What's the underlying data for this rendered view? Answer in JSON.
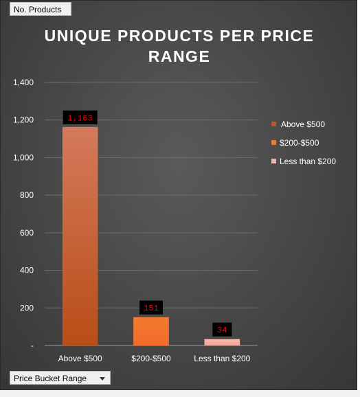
{
  "pivot_fields": {
    "values_field": "No. Products",
    "axis_field": "Price Bucket Range"
  },
  "chart_data": {
    "type": "bar",
    "title": "UNIQUE PRODUCTS PER PRICE RANGE",
    "xlabel": "",
    "ylabel": "",
    "categories": [
      "Above $500",
      "$200-$500",
      "Less than $200"
    ],
    "values": [
      1163,
      151,
      34
    ],
    "data_labels": [
      "1,163",
      "151",
      "34"
    ],
    "ylim": [
      0,
      1400
    ],
    "yticks": [
      0,
      200,
      400,
      600,
      800,
      1000,
      1200,
      1400
    ],
    "ytick_labels": [
      "-",
      "200",
      "400",
      "600",
      "800",
      "1,000",
      "1,200",
      "1,400"
    ],
    "grid": true,
    "legend": "right",
    "legend_entries": [
      "Above $500",
      "$200-$500",
      "Less than $200"
    ],
    "colors": [
      "#c0531f",
      "#f07830",
      "#f4b1a2"
    ],
    "data_label_color": "#ff0000",
    "data_label_bg": "#000000"
  }
}
